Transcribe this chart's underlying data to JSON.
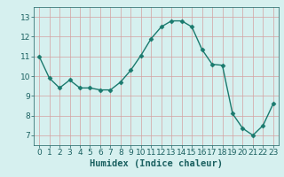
{
  "x": [
    0,
    1,
    2,
    3,
    4,
    5,
    6,
    7,
    8,
    9,
    10,
    11,
    12,
    13,
    14,
    15,
    16,
    17,
    18,
    19,
    20,
    21,
    22,
    23
  ],
  "y": [
    11.0,
    9.9,
    9.4,
    9.8,
    9.4,
    9.4,
    9.3,
    9.3,
    9.7,
    10.3,
    11.05,
    11.9,
    12.5,
    12.8,
    12.8,
    12.5,
    11.35,
    10.6,
    10.55,
    8.1,
    7.35,
    7.0,
    7.5,
    8.6
  ],
  "line_color": "#1a7a6e",
  "marker": "D",
  "marker_size": 2.5,
  "bg_color": "#d6f0ef",
  "grid_color": "#d4a0a0",
  "xlabel": "Humidex (Indice chaleur)",
  "ylim": [
    6.5,
    13.5
  ],
  "xlim": [
    -0.5,
    23.5
  ],
  "yticks": [
    7,
    8,
    9,
    10,
    11,
    12,
    13
  ],
  "xticks": [
    0,
    1,
    2,
    3,
    4,
    5,
    6,
    7,
    8,
    9,
    10,
    11,
    12,
    13,
    14,
    15,
    16,
    17,
    18,
    19,
    20,
    21,
    22,
    23
  ],
  "tick_fontsize": 6.5,
  "xlabel_fontsize": 7.5
}
